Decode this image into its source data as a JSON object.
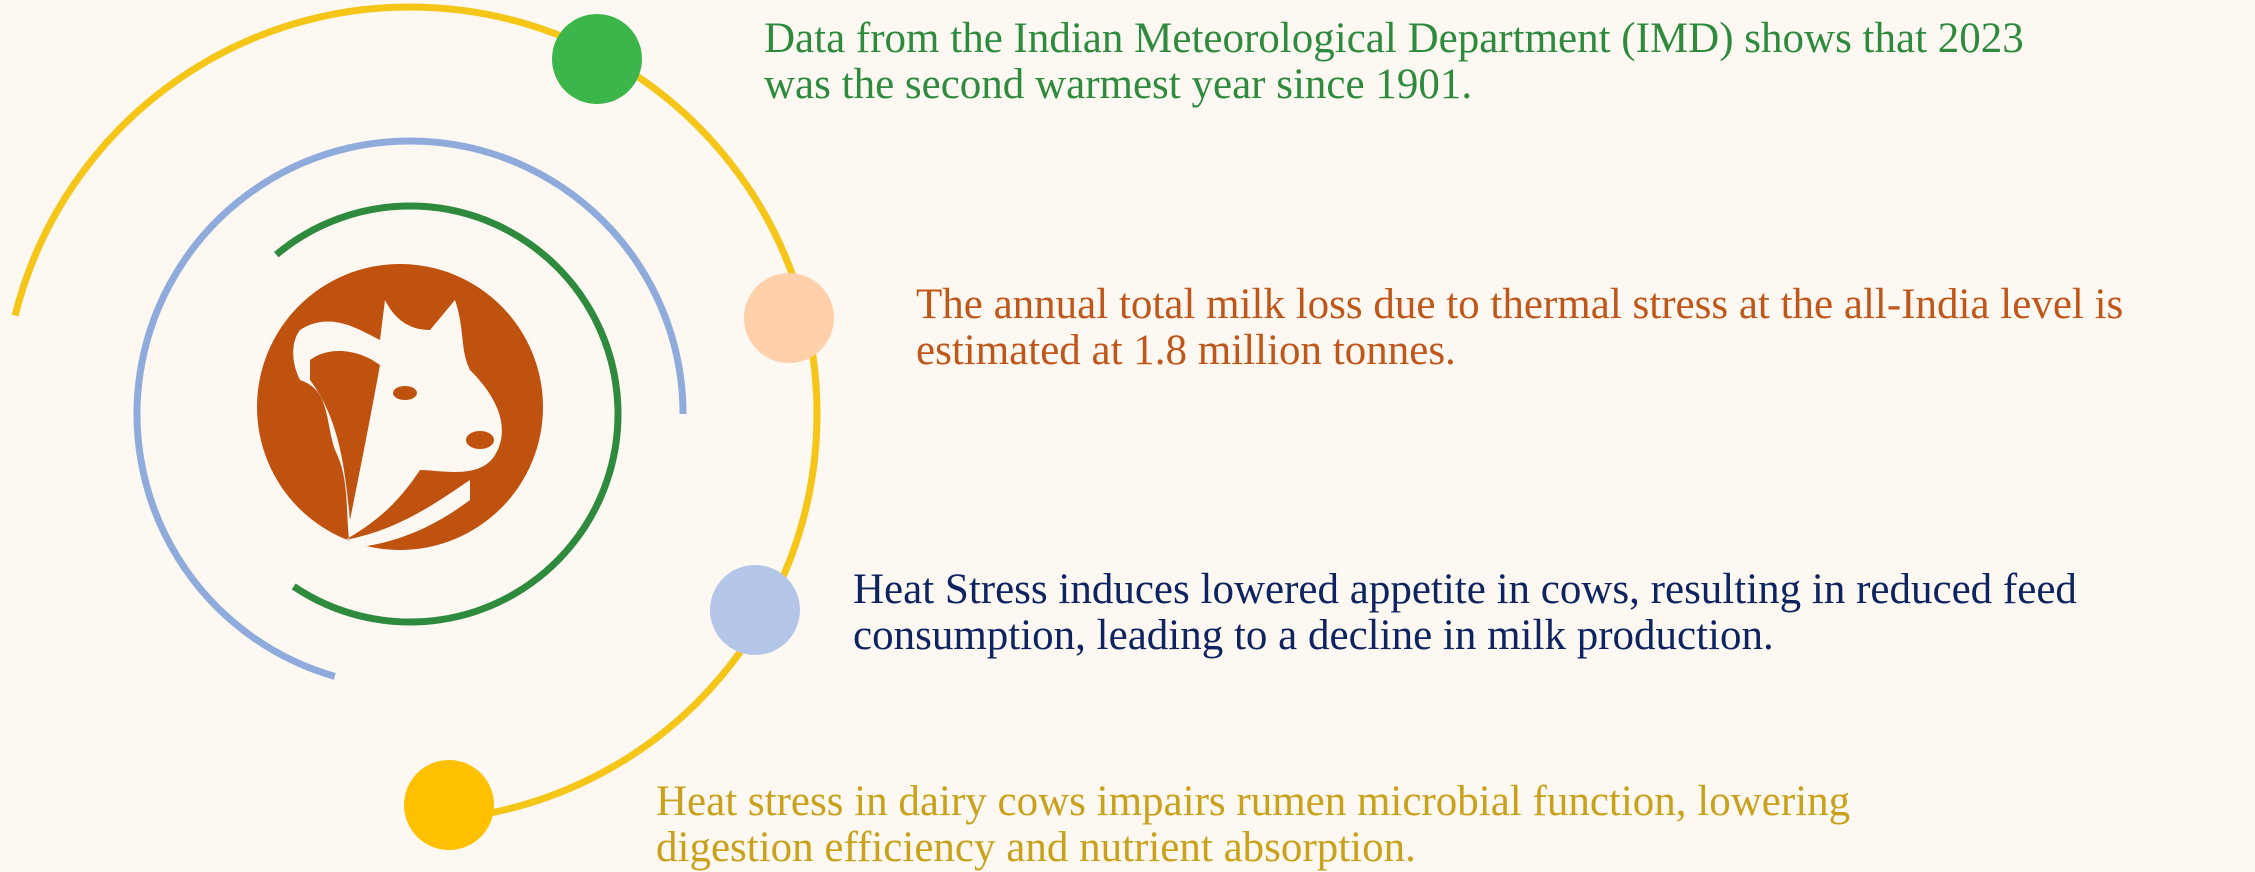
{
  "items": [
    {
      "lines": [
        "Data from the Indian Meteorological Department (IMD) shows that 2023",
        "was the second warmest year since 1901."
      ]
    },
    {
      "lines": [
        "The annual total milk loss due to thermal stress at the all-India level is",
        "estimated at 1.8 million tonnes."
      ]
    },
    {
      "lines": [
        "Heat Stress induces lowered appetite in cows, resulting in reduced feed",
        "consumption, leading to a decline in milk production."
      ]
    },
    {
      "lines": [
        "Heat stress in dairy cows impairs rumen microbial function, lowering",
        "digestion efficiency and nutrient absorption."
      ]
    }
  ]
}
